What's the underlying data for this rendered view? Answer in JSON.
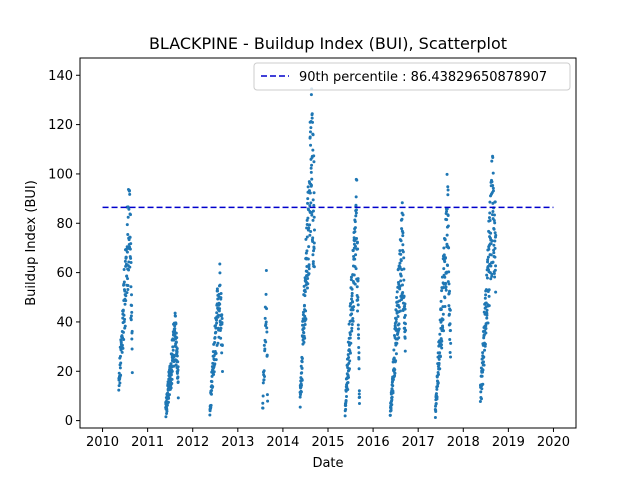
{
  "chart_data": {
    "type": "scatter",
    "title": "BLACKPINE - Buildup Index (BUI), Scatterplot",
    "xlabel": "Date",
    "ylabel": "Buildup Index (BUI)",
    "xlim": [
      2009.5,
      2020.5
    ],
    "ylim": [
      -3,
      147
    ],
    "x_ticks": [
      "2010",
      "2011",
      "2012",
      "2013",
      "2014",
      "2015",
      "2016",
      "2017",
      "2018",
      "2019",
      "2020"
    ],
    "y_ticks": [
      0,
      20,
      40,
      60,
      80,
      100,
      120,
      140
    ],
    "grid": false,
    "legend_position": "top-right",
    "point_color": "#1f77b4",
    "reference_line": {
      "label": "90th percentile : 86.43829650878907",
      "y": 86.43829650878907,
      "x_start": 2010.0,
      "x_end": 2020.0,
      "color": "#0000cc",
      "style": "dashed"
    },
    "season_summary": [
      {
        "year": 2010,
        "x_start": 2010.36,
        "x_end": 2010.66,
        "y_start": 16,
        "y_peak": 108,
        "y_end": 33,
        "count": 120
      },
      {
        "year": 2011,
        "x_start": 2011.4,
        "x_end": 2011.68,
        "y_start": 5,
        "y_peak": 47,
        "y_end": 18,
        "count": 160
      },
      {
        "year": 2012,
        "x_start": 2012.38,
        "x_end": 2012.66,
        "y_start": 5,
        "y_peak": 70,
        "y_end": 40,
        "count": 110
      },
      {
        "year": 2013,
        "x_start": 2013.55,
        "x_end": 2013.66,
        "y_start": 9,
        "y_peak": 65,
        "y_end": 12,
        "count": 30
      },
      {
        "year": 2014,
        "x_start": 2014.38,
        "x_end": 2014.7,
        "y_start": 10,
        "y_peak": 136,
        "y_end": 100,
        "count": 170
      },
      {
        "year": 2015,
        "x_start": 2015.38,
        "x_end": 2015.7,
        "y_start": 5,
        "y_peak": 101,
        "y_end": 10,
        "count": 150
      },
      {
        "year": 2016,
        "x_start": 2016.38,
        "x_end": 2016.72,
        "y_start": 3,
        "y_peak": 92,
        "y_end": 40,
        "count": 160
      },
      {
        "year": 2017,
        "x_start": 2017.38,
        "x_end": 2017.72,
        "y_start": 3,
        "y_peak": 103,
        "y_end": 40,
        "count": 150
      },
      {
        "year": 2018,
        "x_start": 2018.38,
        "x_end": 2018.72,
        "y_start": 12,
        "y_peak": 111,
        "y_end": 90,
        "count": 160
      }
    ]
  }
}
